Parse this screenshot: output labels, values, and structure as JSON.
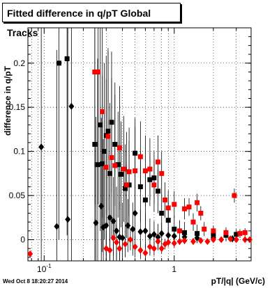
{
  "header": {
    "title": "Fitted difference in q/pT  Global Tracks"
  },
  "footer": {
    "timestamp": "Wed Oct  8 18:20:27 2014"
  },
  "chart_data": {
    "type": "scatter",
    "title": "Fitted difference in q/pT  Global Tracks",
    "xlabel": "pT/|q| (GeV/c)",
    "ylabel": "difference in q/pT",
    "xscale": "log",
    "xlim": [
      0.075,
      3.9
    ],
    "ylim": [
      -0.024,
      0.24
    ],
    "grid": true,
    "x_ticks": [
      {
        "v": 0.1,
        "label": "10^{-1}"
      },
      {
        "v": 1,
        "label": "1"
      }
    ],
    "y_ticks": [
      0,
      0.05,
      0.1,
      0.15,
      0.2
    ],
    "colors": {
      "black": "#000000",
      "red": "#ff0000"
    },
    "series": [
      {
        "marker": "diamond",
        "color": "#000000",
        "points": [
          {
            "x": 0.095,
            "y": 0.105,
            "e": 0.15
          },
          {
            "x": 0.125,
            "y": 0.015,
            "e": 0.2
          },
          {
            "x": 0.152,
            "y": 0.023,
            "e": 0.22
          },
          {
            "x": 0.162,
            "y": 0.151,
            "e": 0.2
          },
          {
            "x": 0.25,
            "y": 0.019,
            "e": 0.12
          },
          {
            "x": 0.275,
            "y": 0.038,
            "e": 0.1
          },
          {
            "x": 0.285,
            "y": 0.014,
            "e": 0.1
          },
          {
            "x": 0.3,
            "y": 0.016,
            "e": 0.08
          },
          {
            "x": 0.32,
            "y": 0.025,
            "e": 0.06
          },
          {
            "x": 0.34,
            "y": 0.021,
            "e": 0.05
          },
          {
            "x": 0.36,
            "y": 0.01,
            "e": 0.05
          },
          {
            "x": 0.38,
            "y": 0.003,
            "e": 0.04
          },
          {
            "x": 0.4,
            "y": 0.002,
            "e": 0.04
          },
          {
            "x": 0.44,
            "y": 0.016,
            "e": 0.03
          },
          {
            "x": 0.48,
            "y": 0.012,
            "e": 0.03
          },
          {
            "x": 0.5,
            "y": 0.03,
            "e": 0.03
          },
          {
            "x": 0.55,
            "y": 0.009,
            "e": 0.025
          },
          {
            "x": 0.6,
            "y": 0.01,
            "e": 0.02
          },
          {
            "x": 0.65,
            "y": 0.004,
            "e": 0.02
          },
          {
            "x": 0.7,
            "y": 0.006,
            "e": 0.015
          },
          {
            "x": 0.75,
            "y": 0.003,
            "e": 0.015
          },
          {
            "x": 0.8,
            "y": 0.007,
            "e": 0.012
          },
          {
            "x": 0.9,
            "y": 0.005,
            "e": 0.01
          },
          {
            "x": 1.0,
            "y": 0.004,
            "e": 0.01
          },
          {
            "x": 1.2,
            "y": 0.003,
            "e": 0.008
          },
          {
            "x": 1.5,
            "y": 0.002,
            "e": 0.006
          },
          {
            "x": 2.0,
            "y": 0.002,
            "e": 0.005
          },
          {
            "x": 2.8,
            "y": 0.001,
            "e": 0.004
          }
        ]
      },
      {
        "marker": "square",
        "color": "#000000",
        "points": [
          {
            "x": 0.13,
            "y": 0.2,
            "e": 0.2
          },
          {
            "x": 0.15,
            "y": 0.205,
            "e": 0.2
          },
          {
            "x": 0.245,
            "y": 0.108,
            "e": 0.15
          },
          {
            "x": 0.258,
            "y": 0.085,
            "e": 0.12
          },
          {
            "x": 0.27,
            "y": 0.13,
            "e": 0.12
          },
          {
            "x": 0.28,
            "y": 0.086,
            "e": 0.1
          },
          {
            "x": 0.29,
            "y": 0.1,
            "e": 0.1
          },
          {
            "x": 0.3,
            "y": 0.118,
            "e": 0.09
          },
          {
            "x": 0.31,
            "y": 0.123,
            "e": 0.09
          },
          {
            "x": 0.32,
            "y": 0.075,
            "e": 0.08
          },
          {
            "x": 0.33,
            "y": 0.133,
            "e": 0.08
          },
          {
            "x": 0.35,
            "y": 0.108,
            "e": 0.07
          },
          {
            "x": 0.37,
            "y": 0.085,
            "e": 0.06
          },
          {
            "x": 0.39,
            "y": 0.074,
            "e": 0.06
          },
          {
            "x": 0.42,
            "y": 0.058,
            "e": 0.05
          },
          {
            "x": 0.45,
            "y": 0.062,
            "e": 0.05
          },
          {
            "x": 0.5,
            "y": 0.098,
            "e": 0.04
          },
          {
            "x": 0.55,
            "y": 0.06,
            "e": 0.04
          },
          {
            "x": 0.6,
            "y": 0.045,
            "e": 0.035
          },
          {
            "x": 0.65,
            "y": 0.068,
            "e": 0.03
          },
          {
            "x": 0.7,
            "y": 0.07,
            "e": 0.03
          },
          {
            "x": 0.75,
            "y": 0.055,
            "e": 0.025
          },
          {
            "x": 0.8,
            "y": 0.03,
            "e": 0.02
          },
          {
            "x": 0.9,
            "y": 0.022,
            "e": 0.02
          },
          {
            "x": 1.0,
            "y": 0.012,
            "e": 0.015
          },
          {
            "x": 1.2,
            "y": 0.008,
            "e": 0.012
          },
          {
            "x": 1.5,
            "y": 0.007,
            "e": 0.01
          },
          {
            "x": 2.0,
            "y": 0.006,
            "e": 0.008
          },
          {
            "x": 2.5,
            "y": 0.005,
            "e": 0.007
          },
          {
            "x": 3.0,
            "y": 0.006,
            "e": 0.006
          }
        ]
      },
      {
        "marker": "square",
        "color": "#ff0000",
        "points": [
          {
            "x": 0.245,
            "y": 0.19,
            "e": 0.15
          },
          {
            "x": 0.26,
            "y": 0.19,
            "e": 0.15
          },
          {
            "x": 0.28,
            "y": 0.145,
            "e": 0.12
          },
          {
            "x": 0.3,
            "y": 0.082,
            "e": 0.1
          },
          {
            "x": 0.31,
            "y": 0.117,
            "e": 0.1
          },
          {
            "x": 0.33,
            "y": 0.093,
            "e": 0.09
          },
          {
            "x": 0.35,
            "y": 0.084,
            "e": 0.08
          },
          {
            "x": 0.38,
            "y": 0.104,
            "e": 0.07
          },
          {
            "x": 0.41,
            "y": 0.08,
            "e": 0.06
          },
          {
            "x": 0.43,
            "y": 0.062,
            "e": 0.06
          },
          {
            "x": 0.45,
            "y": 0.077,
            "e": 0.05
          },
          {
            "x": 0.5,
            "y": 0.078,
            "e": 0.05
          },
          {
            "x": 0.55,
            "y": 0.094,
            "e": 0.04
          },
          {
            "x": 0.6,
            "y": 0.078,
            "e": 0.04
          },
          {
            "x": 0.65,
            "y": 0.08,
            "e": 0.035
          },
          {
            "x": 0.7,
            "y": 0.062,
            "e": 0.03
          },
          {
            "x": 0.75,
            "y": 0.088,
            "e": 0.03
          },
          {
            "x": 0.8,
            "y": 0.075,
            "e": 0.025
          },
          {
            "x": 0.85,
            "y": 0.045,
            "e": 0.02
          },
          {
            "x": 0.9,
            "y": 0.036,
            "e": 0.02
          },
          {
            "x": 1.0,
            "y": 0.04,
            "e": 0.015
          },
          {
            "x": 1.1,
            "y": 0.01,
            "e": 0.012
          },
          {
            "x": 1.2,
            "y": 0.035,
            "e": 0.012
          },
          {
            "x": 1.3,
            "y": 0.037,
            "e": 0.01
          },
          {
            "x": 1.4,
            "y": 0.02,
            "e": 0.01
          },
          {
            "x": 1.5,
            "y": 0.042,
            "e": 0.01
          },
          {
            "x": 1.6,
            "y": 0.03,
            "e": 0.008
          },
          {
            "x": 1.7,
            "y": 0.012,
            "e": 0.008
          },
          {
            "x": 2.0,
            "y": 0.01,
            "e": 0.006
          },
          {
            "x": 2.5,
            "y": 0.008,
            "e": 0.006
          },
          {
            "x": 2.9,
            "y": 0.05,
            "e": 0.008
          },
          {
            "x": 3.2,
            "y": 0.007,
            "e": 0.005
          },
          {
            "x": 3.5,
            "y": 0.008,
            "e": 0.005
          }
        ]
      },
      {
        "marker": "diamond",
        "color": "#ff0000",
        "points": [
          {
            "x": 0.078,
            "y": -0.016,
            "e": 0
          },
          {
            "x": 0.3,
            "y": -0.01,
            "e": 0.02
          },
          {
            "x": 0.32,
            "y": -0.012,
            "e": 0.02
          },
          {
            "x": 0.34,
            "y": 0.002,
            "e": 0.02
          },
          {
            "x": 0.36,
            "y": -0.003,
            "e": 0.02
          },
          {
            "x": 0.38,
            "y": -0.01,
            "e": 0.015
          },
          {
            "x": 0.42,
            "y": -0.005,
            "e": 0.015
          },
          {
            "x": 0.46,
            "y": 0.0,
            "e": 0.012
          },
          {
            "x": 0.5,
            "y": -0.008,
            "e": 0.012
          },
          {
            "x": 0.55,
            "y": -0.012,
            "e": 0.01
          },
          {
            "x": 0.6,
            "y": -0.015,
            "e": 0.01
          },
          {
            "x": 0.65,
            "y": -0.008,
            "e": 0.01
          },
          {
            "x": 0.7,
            "y": -0.01,
            "e": 0.008
          },
          {
            "x": 0.75,
            "y": -0.002,
            "e": 0.008
          },
          {
            "x": 0.8,
            "y": -0.01,
            "e": 0.006
          },
          {
            "x": 0.85,
            "y": -0.005,
            "e": 0.006
          },
          {
            "x": 0.9,
            "y": -0.003,
            "e": 0.005
          },
          {
            "x": 1.0,
            "y": -0.004,
            "e": 0.005
          },
          {
            "x": 1.1,
            "y": -0.002,
            "e": 0.004
          },
          {
            "x": 1.2,
            "y": -0.001,
            "e": 0.004
          },
          {
            "x": 1.4,
            "y": -0.002,
            "e": 0.004
          },
          {
            "x": 1.6,
            "y": -0.001,
            "e": 0.003
          },
          {
            "x": 1.8,
            "y": -0.002,
            "e": 0.003
          },
          {
            "x": 2.0,
            "y": 0.0,
            "e": 0.003
          },
          {
            "x": 2.3,
            "y": 0.0,
            "e": 0.003
          },
          {
            "x": 2.7,
            "y": 0.001,
            "e": 0.003
          },
          {
            "x": 3.0,
            "y": 0.0,
            "e": 0.003
          },
          {
            "x": 3.5,
            "y": 0.0,
            "e": 0.003
          },
          {
            "x": 3.8,
            "y": 0.0,
            "e": 0.003
          }
        ]
      }
    ]
  }
}
